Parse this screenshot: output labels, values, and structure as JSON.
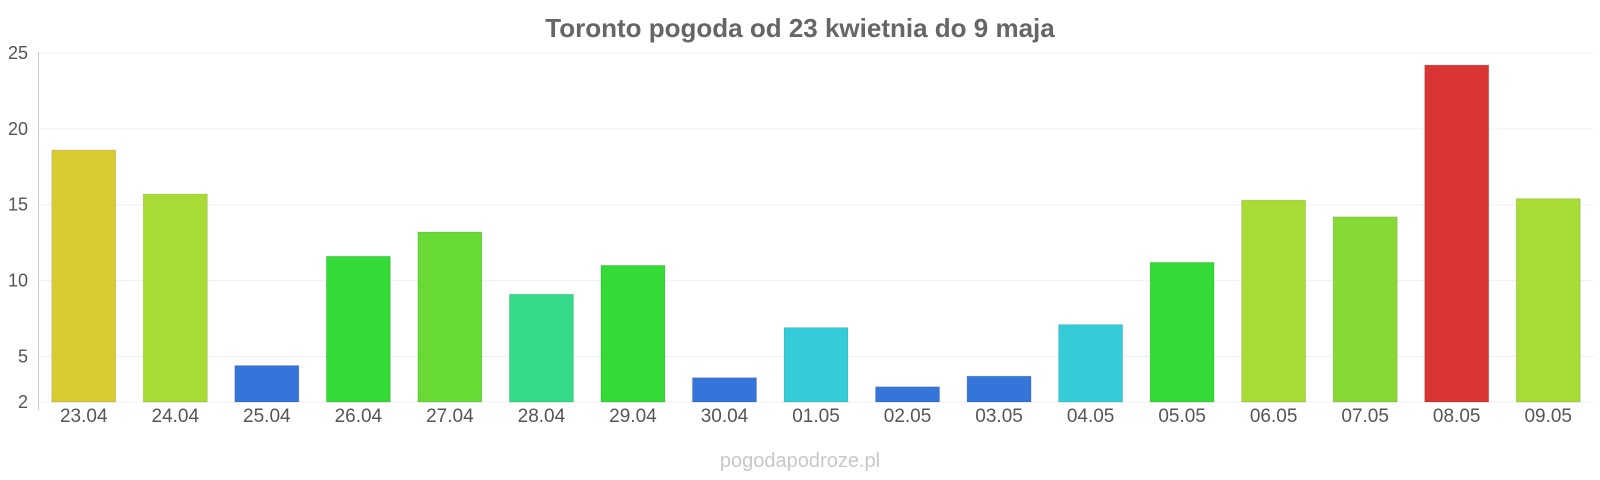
{
  "chart_data": {
    "type": "bar",
    "title": "Toronto pogoda od 23 kwietnia do 9 maja",
    "categories": [
      "23.04",
      "24.04",
      "25.04",
      "26.04",
      "27.04",
      "28.04",
      "29.04",
      "30.04",
      "01.05",
      "02.05",
      "03.05",
      "04.05",
      "05.05",
      "06.05",
      "07.05",
      "08.05",
      "09.05"
    ],
    "values": [
      18.6,
      15.7,
      4.4,
      11.6,
      13.2,
      9.1,
      11.0,
      3.6,
      6.9,
      3.0,
      3.7,
      7.1,
      11.2,
      15.3,
      14.2,
      24.2,
      15.4
    ],
    "colors": [
      "#d9cc33",
      "#a8dc35",
      "#3575da",
      "#34da35",
      "#68da35",
      "#35da8a",
      "#34da35",
      "#3575da",
      "#35ccda",
      "#3575da",
      "#3575da",
      "#35ccda",
      "#34da35",
      "#a8dc35",
      "#87da35",
      "#da3535",
      "#a8dc35"
    ],
    "yticks": [
      2,
      5,
      10,
      15,
      20,
      25
    ],
    "ylim": [
      2,
      25
    ],
    "xlabel": "",
    "ylabel": "",
    "grid": true,
    "legend": "none"
  },
  "footer": {
    "watermark": "pogodapodroze.pl"
  }
}
